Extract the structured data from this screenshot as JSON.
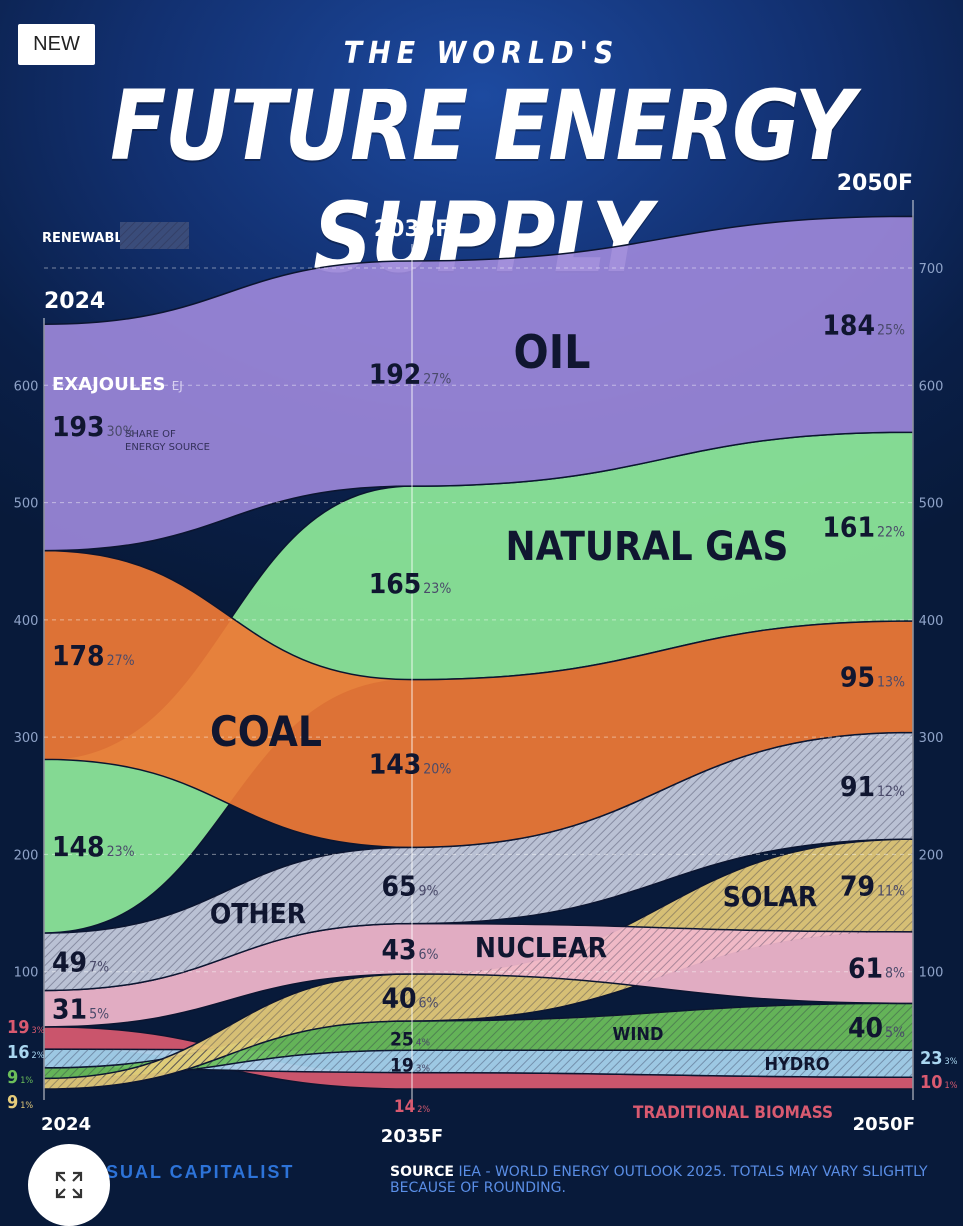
{
  "badge": "NEW",
  "title": {
    "line1": "THE WORLD'S",
    "line2": "FUTURE ENERGY SUPPLY"
  },
  "legend": {
    "renewables_label": "RENEWABLES"
  },
  "unit_label": "EXAJOULES",
  "unit_abbr": "EJ",
  "share_note_line1": "SHARE OF",
  "share_note_line2": "ENERGY SOURCE",
  "footer": {
    "brand": "SUAL CAPITALIST",
    "source_label": "SOURCE",
    "source_text": "IEA - WORLD ENERGY OUTLOOK 2025. TOTALS MAY VARY SLIGHTLY BECAUSE OF ROUNDING."
  },
  "colors": {
    "oil": "#9b86d8",
    "natural_gas": "#8ee89a",
    "coal": "#ee7a36",
    "other": "#c8cfe0",
    "nuclear": "#f2b8cc",
    "solar": "#e6cc7a",
    "wind": "#6cbf5a",
    "hydro": "#a9d6f0",
    "traditional_biomass": "#d95a70",
    "background": "#081a3a"
  },
  "chart_data": {
    "type": "area",
    "title": "THE WORLD'S FUTURE ENERGY SUPPLY",
    "x": [
      "2024",
      "2035F",
      "2050F"
    ],
    "ylabel": "EXAJOULES EJ",
    "ylim": [
      0,
      700
    ],
    "yticks": [
      100,
      200,
      300,
      400,
      500,
      600,
      700
    ],
    "series": [
      {
        "name": "OIL",
        "key": "oil",
        "values": [
          193,
          192,
          184
        ],
        "shares": [
          "30%",
          "27%",
          "25%"
        ],
        "renewable": false
      },
      {
        "name": "NATURAL GAS",
        "key": "natural_gas",
        "values": [
          148,
          165,
          161
        ],
        "shares": [
          "23%",
          "23%",
          "22%"
        ],
        "renewable": false
      },
      {
        "name": "COAL",
        "key": "coal",
        "values": [
          178,
          143,
          95
        ],
        "shares": [
          "27%",
          "20%",
          "13%"
        ],
        "renewable": false
      },
      {
        "name": "OTHER",
        "key": "other",
        "values": [
          49,
          65,
          91
        ],
        "shares": [
          "7%",
          "9%",
          "12%"
        ],
        "renewable": true
      },
      {
        "name": "NUCLEAR",
        "key": "nuclear",
        "values": [
          31,
          43,
          61
        ],
        "shares": [
          "5%",
          "6%",
          "8%"
        ],
        "renewable": false
      },
      {
        "name": "SOLAR",
        "key": "solar",
        "values": [
          9,
          40,
          79
        ],
        "shares": [
          "1%",
          "6%",
          "11%"
        ],
        "renewable": true
      },
      {
        "name": "WIND",
        "key": "wind",
        "values": [
          9,
          25,
          40
        ],
        "shares": [
          "1%",
          "4%",
          "5%"
        ],
        "renewable": true
      },
      {
        "name": "HYDRO",
        "key": "hydro",
        "values": [
          16,
          19,
          23
        ],
        "shares": [
          "2%",
          "3%",
          "3%"
        ],
        "renewable": true
      },
      {
        "name": "TRADITIONAL BIOMASS",
        "key": "traditional_biomass",
        "values": [
          19,
          14,
          10
        ],
        "shares": [
          "3%",
          "2%",
          "1%"
        ],
        "renewable": false
      }
    ],
    "order_2024_top_to_bottom": [
      "oil",
      "coal",
      "natural_gas",
      "other",
      "nuclear",
      "traditional_biomass",
      "hydro",
      "wind",
      "solar"
    ],
    "order_2035_top_to_bottom": [
      "oil",
      "natural_gas",
      "coal",
      "other",
      "nuclear",
      "solar",
      "wind",
      "hydro",
      "traditional_biomass"
    ],
    "order_2050_top_to_bottom": [
      "oil",
      "natural_gas",
      "coal",
      "other",
      "solar",
      "nuclear",
      "wind",
      "hydro",
      "traditional_biomass"
    ]
  }
}
